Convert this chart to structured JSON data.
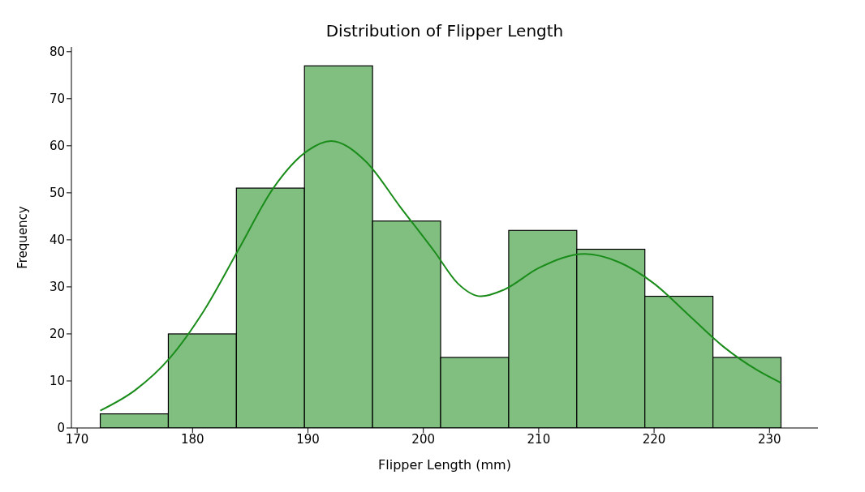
{
  "chart_data": {
    "type": "histogram",
    "title": "Distribution of Flipper Length",
    "xlabel": "Flipper Length (mm)",
    "ylabel": "Frequency",
    "bins": [
      172,
      177.9,
      183.8,
      189.7,
      195.6,
      201.5,
      207.4,
      213.3,
      219.2,
      225.1,
      231
    ],
    "values": [
      3,
      20,
      51,
      77,
      44,
      15,
      42,
      38,
      28,
      15
    ],
    "color": "#80bf80",
    "series": [
      {
        "type": "line",
        "color": "#1a8c1a",
        "marker": "none",
        "x": [
          172,
          175,
          178,
          181,
          184,
          187,
          190,
          192,
          195,
          198,
          201,
          203,
          205,
          207,
          210,
          214,
          217,
          220,
          223,
          226,
          229,
          231
        ],
        "values": [
          3.7,
          8,
          14.8,
          25,
          38,
          51,
          59,
          61,
          56.7,
          47,
          37.4,
          30.7,
          28,
          29.4,
          34,
          37,
          35.2,
          30.7,
          24,
          17.3,
          12.2,
          9.6
        ]
      }
    ],
    "xlim": [
      169.5,
      234.2
    ],
    "xticks": [
      170,
      180,
      190,
      200,
      210,
      220,
      230
    ],
    "ylim": [
      0,
      81
    ],
    "yticks": [
      0,
      10,
      20,
      30,
      40,
      50,
      60,
      70,
      80
    ]
  }
}
